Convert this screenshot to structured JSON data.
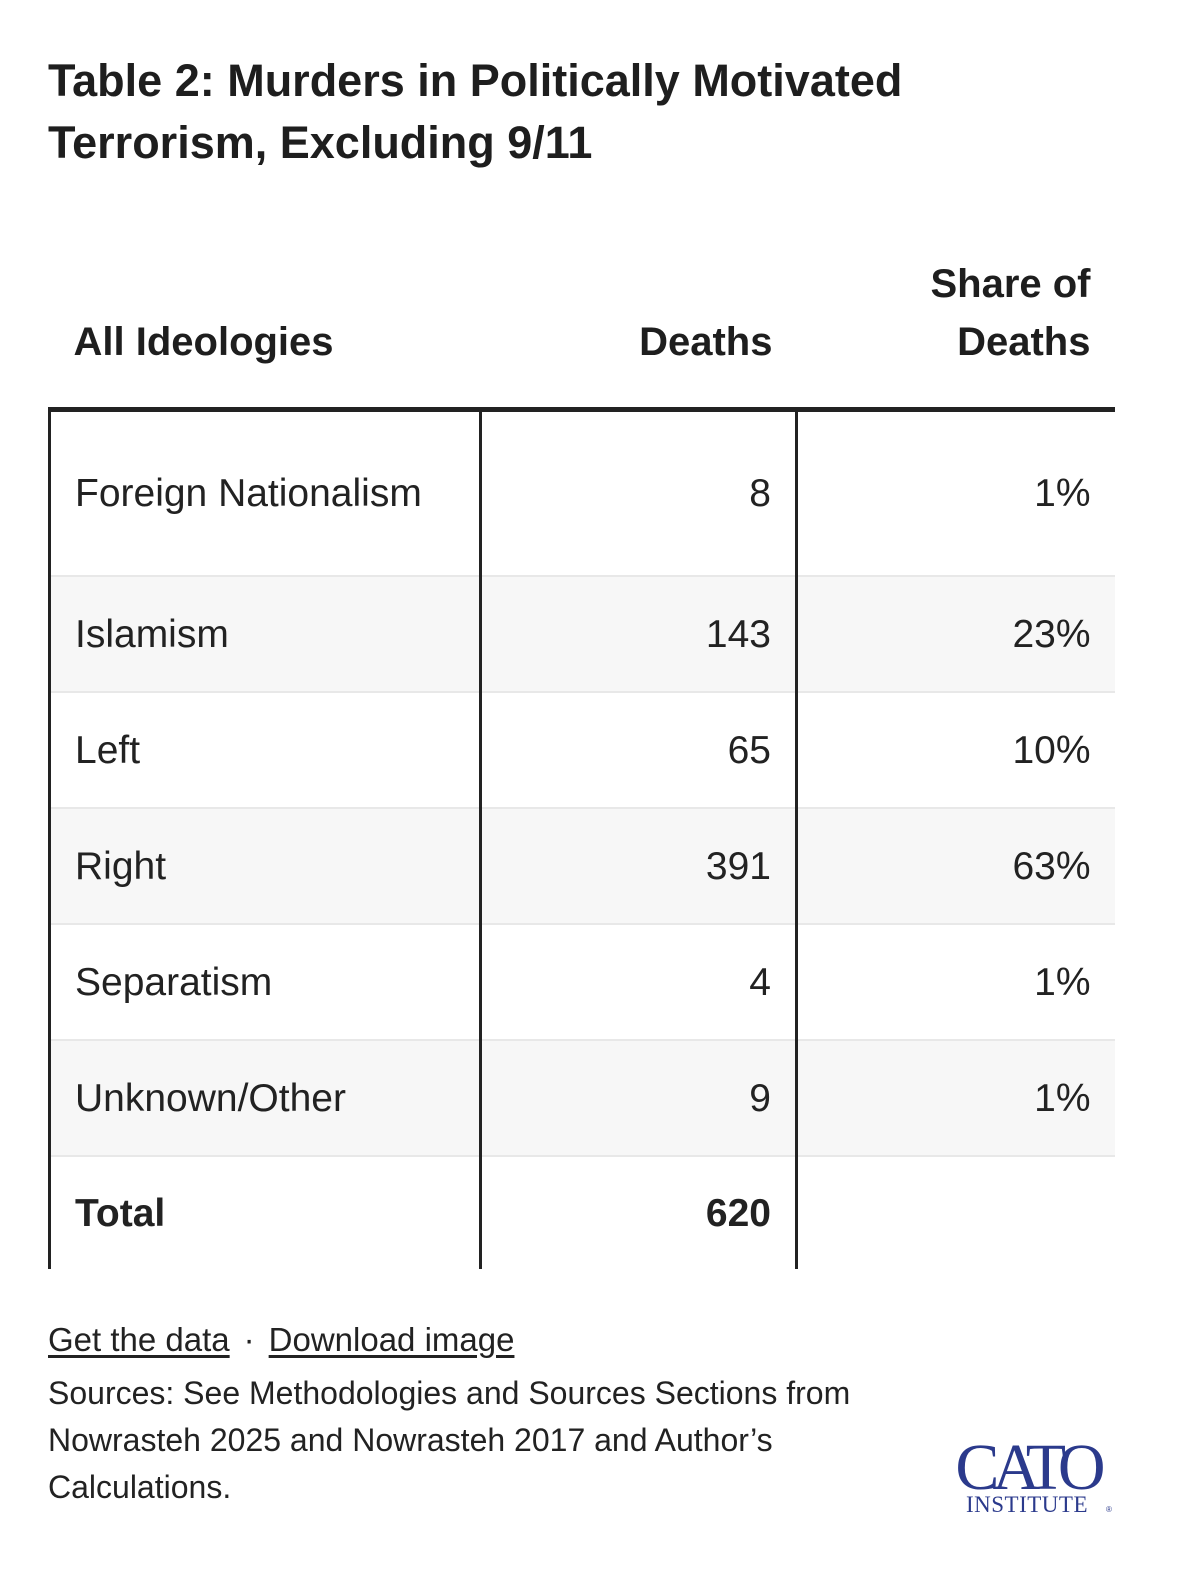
{
  "title": "Table 2: Murders in Politically Motivated Terrorism, Excluding 9/11",
  "chart_data": {
    "type": "table",
    "title": "Table 2: Murders in Politically Motivated Terrorism, Excluding 9/11",
    "columns": [
      "All Ideologies",
      "Deaths",
      "Share of Deaths"
    ],
    "rows": [
      {
        "ideology": "Foreign Nationalism",
        "deaths": "8",
        "share": "1%"
      },
      {
        "ideology": "Islamism",
        "deaths": "143",
        "share": "23%"
      },
      {
        "ideology": "Left",
        "deaths": "65",
        "share": "10%"
      },
      {
        "ideology": "Right",
        "deaths": "391",
        "share": "63%"
      },
      {
        "ideology": "Separatism",
        "deaths": "4",
        "share": "1%"
      },
      {
        "ideology": "Unknown/Other",
        "deaths": "9",
        "share": "1%"
      }
    ],
    "total": {
      "label": "Total",
      "deaths": "620",
      "share": ""
    }
  },
  "links": {
    "get_data": "Get the data",
    "separator": "·",
    "download": "Download image"
  },
  "sources": "Sources: See Methodologies and Sources Sections from Nowrasteh 2025 and Nowrasteh 2017 and Author’s Calculations.",
  "logo": {
    "name": "CATO",
    "sub": "INSTITUTE",
    "color": "#2b3a8c"
  }
}
